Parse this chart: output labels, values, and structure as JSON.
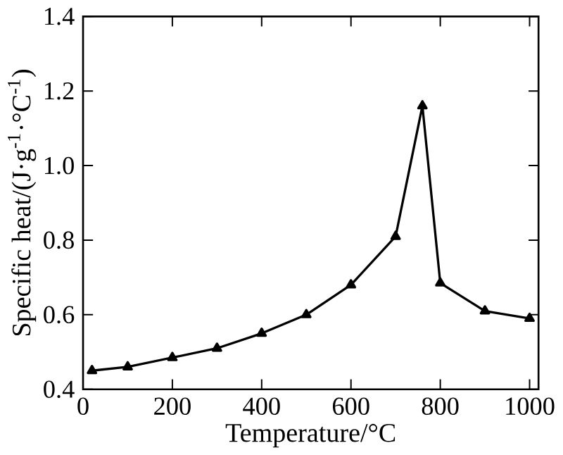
{
  "chart_data": {
    "type": "line",
    "xlabel": "Temperature/°C",
    "ylabel": "Specific heat/(J·g$^{-1}$·°C$^{-1}$)",
    "x": [
      20,
      100,
      200,
      300,
      400,
      500,
      600,
      700,
      760,
      800,
      900,
      1000
    ],
    "series": [
      {
        "color": "#000000",
        "values": [
          0.45,
          0.46,
          0.485,
          0.51,
          0.55,
          0.6,
          0.68,
          0.81,
          1.16,
          0.685,
          0.61,
          0.59
        ]
      }
    ],
    "marker": "triangle",
    "line_style": "solid",
    "xlim": [
      0,
      1020
    ],
    "ylim": [
      0.4,
      1.4
    ],
    "xticks": [
      0,
      200,
      400,
      600,
      800,
      1000
    ],
    "yticks": [
      {
        "value": 0.4,
        "label": "0.4"
      },
      {
        "value": 0.6,
        "label": "0.6"
      },
      {
        "value": 0.8,
        "label": "0.8"
      },
      {
        "value": 1.0,
        "label": "1.0"
      },
      {
        "value": 1.2,
        "label": "1.2"
      },
      {
        "value": 1.4,
        "label": "1.4"
      }
    ]
  }
}
